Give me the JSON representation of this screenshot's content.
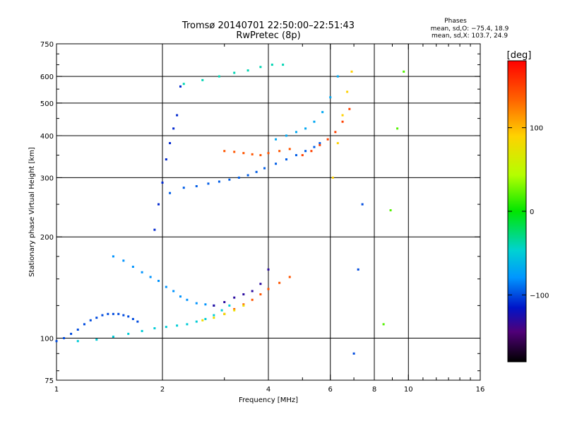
{
  "chart_data": {
    "type": "scatter",
    "title": "Tromsø 20140701 22:50:00–22:51:43",
    "subtitle": "RwPretec (8p)",
    "xlabel": "Frequency [MHz]",
    "ylabel": "Stationary phase Virtual Height [km]",
    "x_scale": "log",
    "y_scale": "log",
    "xlim": [
      1,
      16
    ],
    "ylim": [
      75,
      750
    ],
    "x_ticks": [
      1,
      2,
      4,
      6,
      8,
      10,
      16
    ],
    "x_tick_labels": [
      "1",
      "2",
      "4",
      "6",
      "8",
      "10",
      "16"
    ],
    "y_ticks": [
      75,
      100,
      200,
      300,
      400,
      500,
      600,
      750
    ],
    "y_tick_labels": [
      "75",
      "100",
      "200",
      "300",
      "400",
      "500",
      "600",
      "750"
    ],
    "grid_x": [
      2,
      4,
      6,
      8,
      10
    ],
    "grid_y": [
      100,
      200,
      300,
      400,
      500,
      600
    ],
    "grid": true,
    "info": {
      "title": "Phases",
      "line1": "mean, sd,O: −75.4, 18.9",
      "line2": "mean, sd,X: 103.7, 24.9"
    },
    "colorbar": {
      "label": "[deg]",
      "min": -180,
      "max": 180,
      "ticks": [
        100,
        0,
        -100
      ],
      "tick_labels": [
        "100",
        "0",
        "−100"
      ]
    },
    "series": [
      {
        "x": [
          1.0,
          1.05,
          1.1,
          1.15,
          1.2,
          1.25,
          1.3,
          1.35,
          1.4,
          1.45,
          1.5,
          1.55,
          1.6,
          1.65,
          1.7
        ],
        "y": [
          98,
          100,
          103,
          106,
          110,
          113,
          115,
          117,
          118,
          118,
          118,
          117,
          116,
          114,
          112
        ],
        "phase": -100
      },
      {
        "x": [
          1.15,
          1.3,
          1.45,
          1.6,
          1.75,
          1.9,
          2.05,
          2.2,
          2.35,
          2.5,
          2.65,
          2.8,
          2.95,
          3.1
        ],
        "y": [
          98,
          99,
          101,
          103,
          105,
          107,
          108,
          109,
          110,
          112,
          114,
          117,
          121,
          125
        ],
        "phase": -50
      },
      {
        "x": [
          1.45,
          1.55,
          1.65,
          1.75,
          1.85,
          1.95,
          2.05,
          2.15,
          2.25,
          2.35,
          2.5,
          2.65,
          2.8
        ],
        "y": [
          175,
          170,
          163,
          157,
          152,
          148,
          142,
          138,
          133,
          130,
          127,
          126,
          125
        ],
        "phase": -80
      },
      {
        "x": [
          1.9,
          1.95,
          2.0,
          2.05,
          2.1,
          2.15,
          2.2,
          2.25
        ],
        "y": [
          210,
          250,
          290,
          340,
          380,
          420,
          460,
          560
        ],
        "phase": -110
      },
      {
        "x": [
          2.1,
          2.3,
          2.5,
          2.7,
          2.9,
          3.1,
          3.3,
          3.5,
          3.7,
          3.9,
          4.2,
          4.5,
          4.8,
          5.1,
          5.4,
          5.6
        ],
        "y": [
          270,
          280,
          283,
          288,
          292,
          296,
          300,
          305,
          312,
          320,
          330,
          340,
          350,
          360,
          370,
          380
        ],
        "phase": -95
      },
      {
        "x": [
          4.2,
          4.5,
          4.8,
          5.1,
          5.4,
          5.7,
          6.0,
          6.3
        ],
        "y": [
          390,
          400,
          410,
          420,
          440,
          470,
          520,
          600
        ],
        "phase": -70
      },
      {
        "x": [
          3.0,
          3.2,
          3.4,
          3.6,
          3.8,
          4.0,
          4.3,
          4.6
        ],
        "y": [
          360,
          358,
          355,
          352,
          350,
          355,
          360,
          365
        ],
        "phase": 140
      },
      {
        "x": [
          5.0,
          5.3,
          5.6,
          5.9,
          6.2,
          6.5,
          6.8
        ],
        "y": [
          350,
          360,
          375,
          390,
          410,
          440,
          480
        ],
        "phase": 150
      },
      {
        "x": [
          2.8,
          3.0,
          3.2,
          3.4,
          3.6,
          3.8,
          4.0
        ],
        "y": [
          125,
          128,
          132,
          135,
          138,
          145,
          160
        ],
        "phase": -130
      },
      {
        "x": [
          3.0,
          3.2,
          3.4,
          3.6,
          3.8,
          4.0,
          4.3,
          4.6
        ],
        "y": [
          118,
          122,
          126,
          130,
          135,
          140,
          146,
          152
        ],
        "phase": 140
      },
      {
        "x": [
          2.6,
          2.8,
          3.0,
          3.2,
          3.4
        ],
        "y": [
          113,
          115,
          118,
          121,
          125
        ],
        "phase": 80
      },
      {
        "x": [
          2.3,
          2.6,
          2.9,
          3.2,
          3.5,
          3.8,
          4.1,
          4.4
        ],
        "y": [
          570,
          585,
          600,
          615,
          625,
          640,
          650,
          650
        ],
        "phase": -40
      },
      {
        "x": [
          6.1,
          6.3,
          6.5,
          6.7,
          6.9
        ],
        "y": [
          300,
          380,
          460,
          540,
          620
        ],
        "phase": 90
      },
      {
        "x": [
          7.0,
          7.2,
          7.4
        ],
        "y": [
          90,
          160,
          250
        ],
        "phase": -100
      },
      {
        "x": [
          8.5,
          8.9,
          9.3,
          9.7
        ],
        "y": [
          110,
          240,
          420,
          620
        ],
        "phase": 20
      }
    ]
  }
}
